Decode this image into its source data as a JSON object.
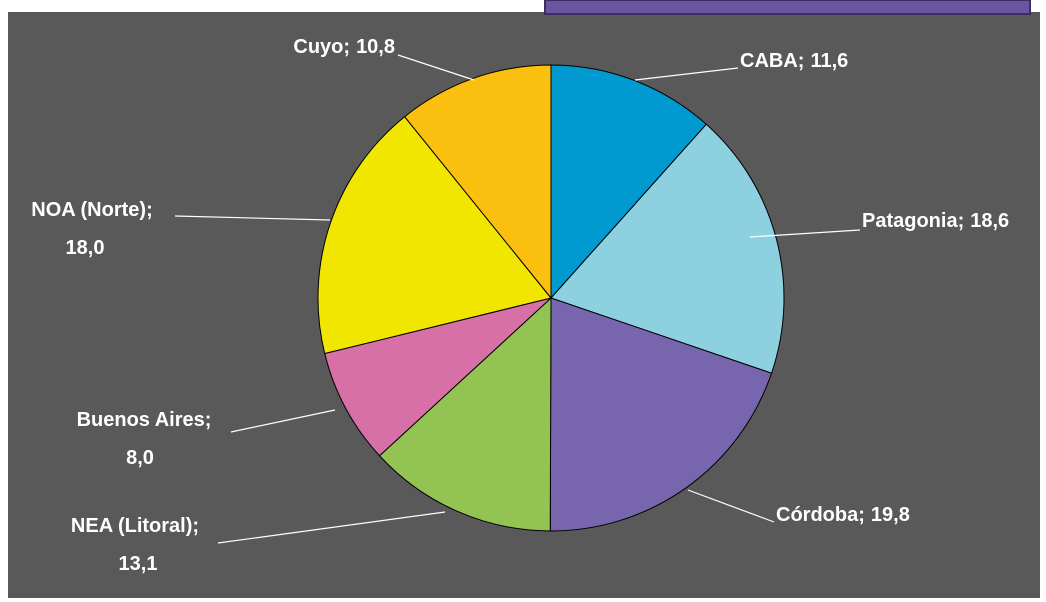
{
  "chart_data": {
    "type": "pie",
    "categories": [
      "CABA",
      "Patagonia",
      "Córdoba",
      "NEA (Litoral)",
      "Buenos Aires",
      "NOA (Norte)",
      "Cuyo"
    ],
    "values": [
      11.6,
      18.6,
      19.8,
      13.1,
      8.0,
      18.0,
      10.8
    ],
    "value_labels": [
      "11,6",
      "18,6",
      "19,8",
      "13,1",
      "8,0",
      "18,0",
      "10,8"
    ],
    "label_separator": ";",
    "colors": [
      "#0099d0",
      "#8dd0e0",
      "#7766ad",
      "#92c353",
      "#d870a8",
      "#f1e600",
      "#fbbf10"
    ]
  }
}
